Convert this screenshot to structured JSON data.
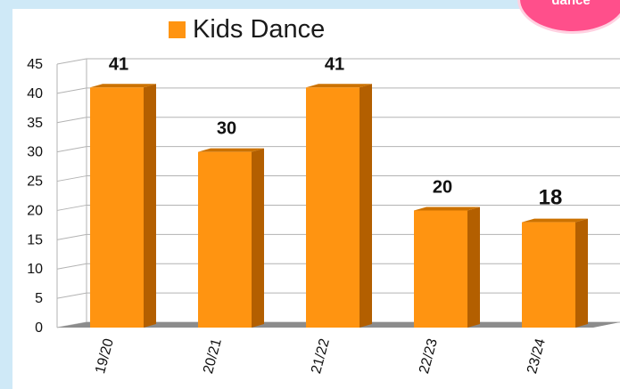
{
  "logo_text": "dance",
  "chart_data": {
    "type": "bar",
    "categories": [
      "19/20",
      "20/21",
      "21/22",
      "22/23",
      "23/24"
    ],
    "series": [
      {
        "name": "Kids Dance",
        "values": [
          41,
          30,
          41,
          20,
          18
        ]
      }
    ],
    "data_labels": [
      "41",
      "30",
      "41",
      "20",
      "18"
    ],
    "y_ticks": [
      "0",
      "5",
      "10",
      "15",
      "20",
      "25",
      "30",
      "35",
      "40",
      "45"
    ],
    "ylim": [
      0,
      45
    ],
    "grid": true,
    "legend_position": "top",
    "style": "3d",
    "colors": {
      "bar_front": "#ff9411",
      "bar_side": "#b35f00",
      "bar_top": "#cc7200",
      "floor": "#8c8c8c",
      "grid": "#b3b3b3",
      "background": "#cfe9f7"
    }
  }
}
